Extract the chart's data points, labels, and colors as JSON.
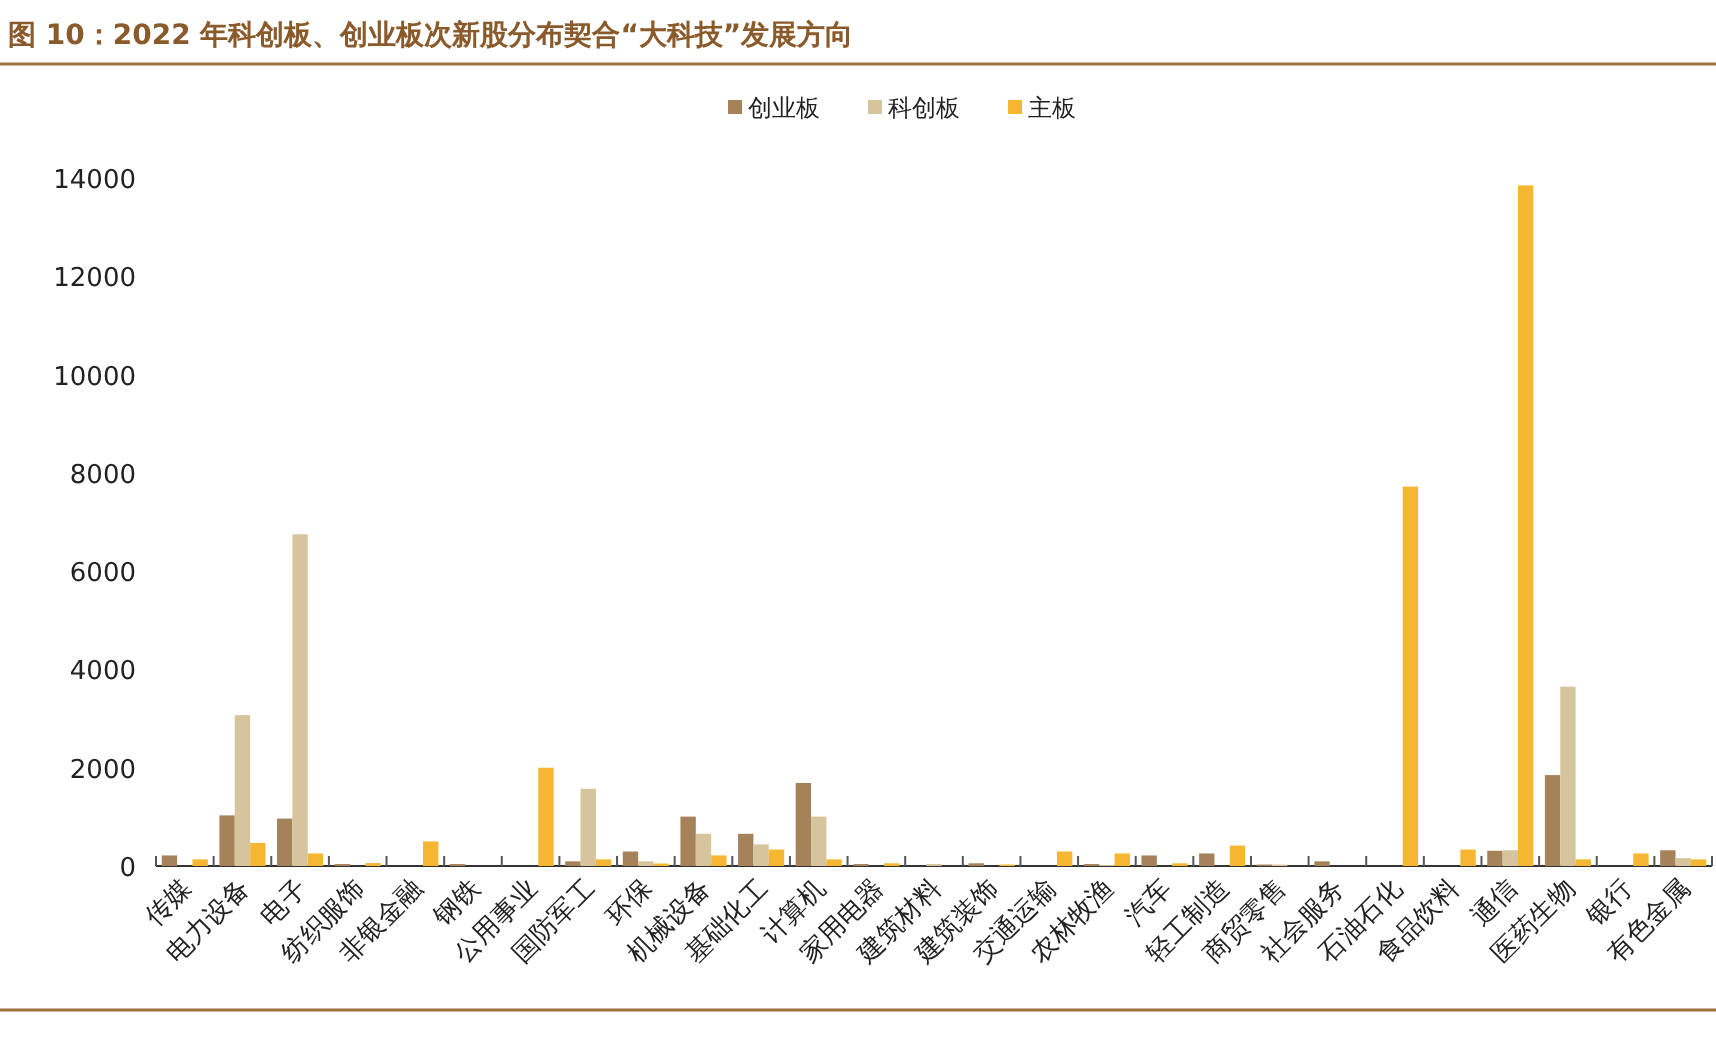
{
  "chart_data": {
    "type": "bar",
    "title": "图 10：2022 年科创板、创业板次新股分布契合“大科技”发展方向",
    "categories": [
      "传媒",
      "电力设备",
      "电子",
      "纺织服饰",
      "非银金融",
      "钢铁",
      "公用事业",
      "国防军工",
      "环保",
      "机械设备",
      "基础化工",
      "计算机",
      "家用电器",
      "建筑材料",
      "建筑装饰",
      "交通运输",
      "农林牧渔",
      "汽车",
      "轻工制造",
      "商贸零售",
      "社会服务",
      "石油石化",
      "食品饮料",
      "通信",
      "医药生物",
      "银行",
      "有色金属"
    ],
    "series": [
      {
        "name": "创业板",
        "color": "#a6825a",
        "values": [
          215,
          1030,
          965,
          40,
          0,
          40,
          0,
          95,
          295,
          1005,
          655,
          1690,
          40,
          0,
          55,
          0,
          40,
          215,
          255,
          30,
          95,
          0,
          0,
          310,
          1850,
          0,
          320
        ]
      },
      {
        "name": "科创板",
        "color": "#d6c49c",
        "values": [
          0,
          3070,
          6750,
          0,
          0,
          0,
          0,
          1570,
          95,
          655,
          440,
          1005,
          0,
          40,
          0,
          0,
          20,
          0,
          0,
          30,
          0,
          0,
          0,
          320,
          3650,
          0,
          160
        ]
      },
      {
        "name": "主板",
        "color": "#f5b731",
        "values": [
          135,
          470,
          255,
          60,
          500,
          0,
          2000,
          135,
          50,
          215,
          335,
          135,
          55,
          0,
          30,
          295,
          255,
          55,
          415,
          0,
          0,
          7720,
          335,
          13850,
          135,
          255,
          135
        ]
      }
    ],
    "ylim": [
      0,
      14000
    ],
    "yticks": [
      0,
      2000,
      4000,
      6000,
      8000,
      10000,
      12000,
      14000
    ],
    "legend": "top",
    "grid": false
  }
}
